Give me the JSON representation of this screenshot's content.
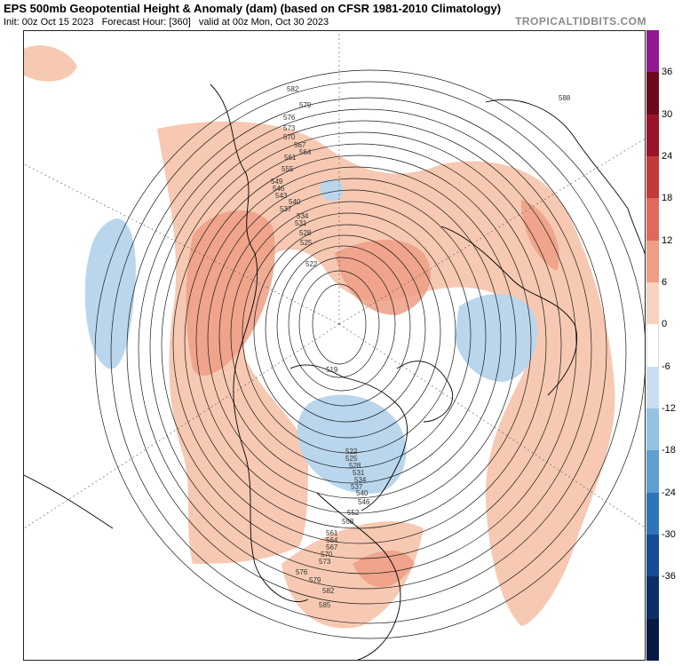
{
  "header": {
    "title": "EPS 500mb Geopotential Height & Anomaly (dam) (based on CFSR 1981-2010 Climatology)",
    "init": "Init: 00z Oct 15 2023",
    "forecast_hour": "Forecast Hour: [360]",
    "valid": "valid at 00z Mon, Oct 30 2023",
    "brand": "TROPICALTIDBITS.COM"
  },
  "colorbar": {
    "unit": "dam",
    "ticks": [
      "36",
      "30",
      "24",
      "18",
      "12",
      "6",
      "0",
      "-6",
      "-12",
      "-18",
      "-24",
      "-30",
      "-36"
    ],
    "colors": [
      "#8f1a8f",
      "#6b0a1e",
      "#9a1428",
      "#c43a3a",
      "#df6a5a",
      "#ef9e84",
      "#f9d2bf",
      "#ffffff",
      "#c7dff0",
      "#94c2e0",
      "#5f9fd0",
      "#2f74b8",
      "#164c96",
      "#0c2f6a",
      "#071a44"
    ]
  },
  "map": {
    "height_labels": [
      "582",
      "579",
      "576",
      "573",
      "570",
      "567",
      "564",
      "561",
      "555",
      "549",
      "546",
      "543",
      "540",
      "537",
      "534",
      "531",
      "528",
      "525",
      "522",
      "519",
      "588",
      "522",
      "525",
      "528",
      "531",
      "534",
      "537",
      "540",
      "546",
      "552",
      "558",
      "561",
      "564",
      "567",
      "570",
      "573",
      "576",
      "579",
      "582",
      "585"
    ]
  }
}
